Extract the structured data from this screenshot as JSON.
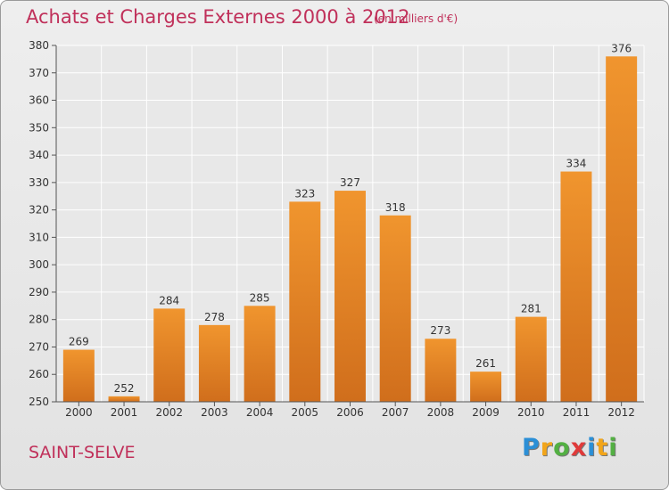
{
  "header": {
    "title": "Achats et Charges Externes 2000 à 2012",
    "unit": "(en milliers d'€)"
  },
  "footer": {
    "town": "SAINT-SELVE",
    "brand": "Proxiti",
    "brand_letters": [
      {
        "ch": "P",
        "color": "#2b8fd6"
      },
      {
        "ch": "r",
        "color": "#f2a51a"
      },
      {
        "ch": "o",
        "color": "#53b043"
      },
      {
        "ch": "x",
        "color": "#e03a3a"
      },
      {
        "ch": "i",
        "color": "#2b8fd6"
      },
      {
        "ch": "t",
        "color": "#f2a51a"
      },
      {
        "ch": "i",
        "color": "#53b043"
      }
    ]
  },
  "chart_data": {
    "type": "bar",
    "title": "Achats et Charges Externes 2000 à 2012",
    "xlabel": "",
    "ylabel": "",
    "categories": [
      "2000",
      "2001",
      "2002",
      "2003",
      "2004",
      "2005",
      "2006",
      "2007",
      "2008",
      "2009",
      "2010",
      "2011",
      "2012"
    ],
    "values": [
      269,
      252,
      284,
      278,
      285,
      323,
      327,
      318,
      273,
      261,
      281,
      334,
      376
    ],
    "ylim": [
      250,
      380
    ],
    "yticks": [
      250,
      260,
      270,
      280,
      290,
      300,
      310,
      320,
      330,
      340,
      350,
      360,
      370,
      380
    ],
    "grid": true,
    "bar_color": "#f0952e",
    "bar_color_dark": "#d06e1c"
  }
}
